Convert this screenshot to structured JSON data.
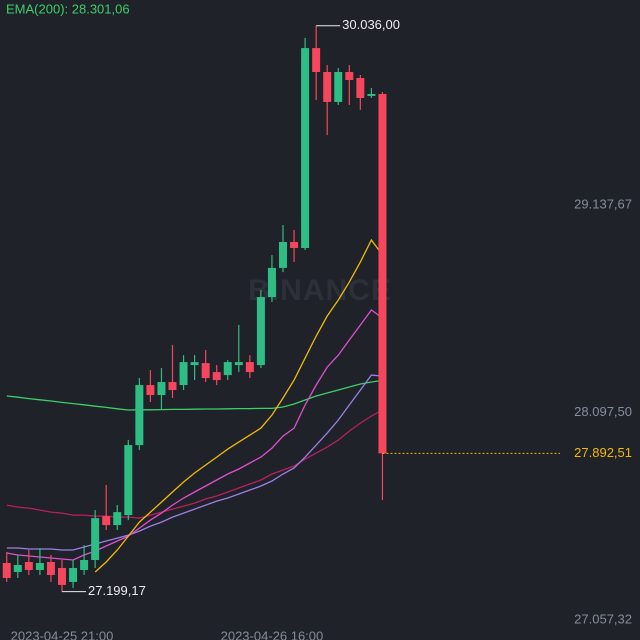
{
  "chart_data": {
    "type": "candlestick",
    "watermark": "BINANCE",
    "ema_label": "EMA(200): 28.301,06",
    "max_label": "30.036,00",
    "min_label": "27.199,17",
    "last_label": "27.892,51",
    "up_color": "#2ebd85",
    "down_color": "#f6465d",
    "categories": [
      null,
      null,
      null,
      null,
      null,
      "2023-04-25 21:00",
      null,
      null,
      null,
      null,
      null,
      null,
      null,
      null,
      null,
      null,
      null,
      null,
      null,
      null,
      null,
      null,
      null,
      null,
      "2023-04-26 16:00",
      null,
      null,
      null,
      null,
      null,
      null,
      null,
      null,
      null,
      null
    ],
    "open": [
      27343,
      27298,
      27348,
      27308,
      27348,
      27318,
      27248,
      27308,
      27358,
      27578,
      27533,
      27583,
      27934,
      28235,
      28185,
      28250,
      28235,
      28335,
      28345,
      28300,
      28285,
      28335,
      28350,
      28335,
      28676,
      28822,
      28952,
      28922,
      29924,
      29804,
      29654,
      29804,
      29774,
      29684,
      29694
    ],
    "high": [
      27398,
      27383,
      27408,
      27418,
      27383,
      27358,
      27358,
      27433,
      27608,
      27734,
      27634,
      27960,
      28270,
      28310,
      28320,
      28436,
      28385,
      28385,
      28411,
      28335,
      28360,
      28536,
      28385,
      28711,
      28887,
      29037,
      29012,
      29975,
      30036,
      29839,
      29824,
      29839,
      29789,
      29724,
      29704
    ],
    "low": [
      27248,
      27268,
      27283,
      27283,
      27248,
      27199.17,
      27218,
      27283,
      27318,
      27508,
      27508,
      27558,
      27909,
      28150,
      28110,
      28170,
      28210,
      28260,
      28250,
      28235,
      28260,
      28300,
      28270,
      28320,
      28651,
      28801,
      28852,
      28912,
      29664,
      29488,
      29639,
      29639,
      29614,
      29674,
      27659
    ],
    "close": [
      27268,
      27333,
      27308,
      27343,
      27283,
      27233,
      27318,
      27358,
      27568,
      27533,
      27598,
      27934,
      28235,
      28185,
      28250,
      28210,
      28350,
      28350,
      28270,
      28260,
      28350,
      28350,
      28300,
      28676,
      28822,
      28952,
      28922,
      29924,
      29804,
      29654,
      29804,
      29764,
      29674,
      29694,
      27892.51
    ],
    "series": [
      {
        "color": "#3ccf6a",
        "values": [
          28180,
          28174,
          28167,
          28161,
          28155,
          28148,
          28142,
          28136,
          28129,
          28123,
          28116,
          28110,
          28111,
          28111,
          28112,
          28113,
          28113,
          28114,
          28115,
          28115,
          28116,
          28117,
          28117,
          28118,
          28118,
          28125,
          28140,
          28160,
          28180,
          28195,
          28210,
          28225,
          28240,
          28250,
          28258
        ]
      },
      {
        "color": "#b8205e",
        "values": [
          27633,
          27623,
          27618,
          27608,
          27598,
          27593,
          27583,
          27583,
          27578,
          27578,
          27573,
          27573,
          27568,
          27583,
          27598,
          27613,
          27628,
          27643,
          27664,
          27679,
          27699,
          27719,
          27739,
          27759,
          27789,
          27809,
          27829,
          27864,
          27894,
          27924,
          27959,
          28004,
          28044,
          28080,
          28110
        ]
      },
      {
        "color": "#9b7fe8",
        "values": [
          27418,
          27418,
          27413,
          27413,
          27413,
          27408,
          27408,
          27423,
          27438,
          27453,
          27468,
          27483,
          27503,
          27528,
          27548,
          27573,
          27593,
          27613,
          27633,
          27653,
          27669,
          27689,
          27709,
          27729,
          27754,
          27789,
          27819,
          27874,
          27934,
          27994,
          28060,
          28135,
          28210,
          28285,
          28280
        ]
      },
      {
        "color": "#e04fd0",
        "values": [
          27393,
          27383,
          27378,
          27373,
          27368,
          27363,
          27358,
          27383,
          27403,
          27428,
          27453,
          27478,
          27518,
          27558,
          27593,
          27633,
          27669,
          27699,
          27729,
          27759,
          27789,
          27814,
          27844,
          27874,
          27919,
          27979,
          28019,
          28135,
          28235,
          28325,
          28385,
          28461,
          28536,
          28611,
          28571
        ]
      },
      {
        "color": "#f0b90b",
        "values": [
          null,
          null,
          null,
          null,
          null,
          null,
          null,
          null,
          27298,
          27348,
          27408,
          27478,
          27548,
          27598,
          27648,
          27699,
          27749,
          27794,
          27834,
          27874,
          27914,
          27949,
          27984,
          28019,
          28085,
          28170,
          28260,
          28370,
          28481,
          28581,
          28661,
          28751,
          28852,
          28962,
          28887
        ]
      }
    ],
    "ylim": [
      26957,
      30165
    ],
    "yticks": [
      {
        "value": 27057.32,
        "label": "27.057,32"
      },
      {
        "value": 28097.5,
        "label": "28.097,50"
      },
      {
        "value": 29137.67,
        "label": "29.137,67"
      }
    ]
  }
}
